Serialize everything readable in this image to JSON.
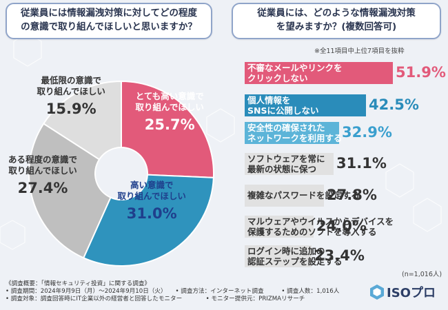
{
  "questions": {
    "left": [
      "従業員には情報漏洩対策に対してどの程度",
      "の意識で取り組んでほしいと思いますか？"
    ],
    "right": [
      "従業員には、どのような情報漏洩対策",
      "を望みますか？(複数回答可)"
    ]
  },
  "note_top": "※全11項目中上位7項目を抜粋",
  "sample_size": "(n=1,016人)",
  "chart_data": [
    {
      "type": "pie",
      "title": "従業員には情報漏洩対策に対してどの程度の意識で取り組んでほしいと思いますか？",
      "unit": "%",
      "slices": [
        {
          "label": [
            "とても高い意識で",
            "取り組んでほしい"
          ],
          "value": 25.7,
          "display": "25.7%",
          "color": "#e25a7a",
          "text_color": "#ffffff"
        },
        {
          "label": [
            "高い意識で",
            "取り組んでほしい"
          ],
          "value": 31.0,
          "display": "31.0%",
          "color": "#2f93bd",
          "text_color": "#1f3f8c"
        },
        {
          "label": [
            "ある程度の意識で",
            "取り組んでほしい"
          ],
          "value": 27.4,
          "display": "27.4%",
          "color": "#bfbfbf",
          "text_color": "#333333"
        },
        {
          "label": [
            "最低限の意識で",
            "取り組んでほしい"
          ],
          "value": 15.9,
          "display": "15.9%",
          "color": "#dedede",
          "text_color": "#333333"
        }
      ]
    },
    {
      "type": "bar",
      "orientation": "horizontal",
      "title": "従業員には、どのような情報漏洩対策を望みますか？(複数回答可)",
      "unit": "%",
      "xlim": [
        0,
        60
      ],
      "bars": [
        {
          "label": [
            "不審なメールやリンクを",
            "クリックしない"
          ],
          "value": 51.9,
          "display": "51.9%",
          "color": "#e25a7a",
          "label_color": "#ffffff",
          "value_color": "#e25a7a"
        },
        {
          "label": [
            "個人情報を",
            "SNSに公開しない"
          ],
          "value": 42.5,
          "display": "42.5%",
          "color": "#2a8cba",
          "label_color": "#ffffff",
          "value_color": "#2a8cba"
        },
        {
          "label": [
            "安全性の確保された",
            "ネットワークを利用する"
          ],
          "value": 32.9,
          "display": "32.9%",
          "color": "#5cb4d8",
          "label_color": "#ffffff",
          "value_color": "#3a9fce"
        },
        {
          "label": [
            "ソフトウェアを常に",
            "最新の状態に保つ"
          ],
          "value": 31.1,
          "display": "31.1%",
          "color": "#e1e1e1",
          "label_color": "#333333",
          "value_color": "#333333"
        },
        {
          "label": [
            "複雑なパスワードを設定する"
          ],
          "value": 27.8,
          "display": "27.8%",
          "color": "#e1e1e1",
          "label_color": "#333333",
          "value_color": "#333333"
        },
        {
          "label": [
            "マルウェアやウイルスからデバイスを",
            "保護するためのソフトを導入する"
          ],
          "value": 24.0,
          "display": "24.0%",
          "color": "#e1e1e1",
          "label_color": "#333333",
          "value_color": "#333333"
        },
        {
          "label": [
            "ログイン時に追加の",
            "認証ステップを設定する"
          ],
          "value": 23.4,
          "display": "23.4%",
          "color": "#e1e1e1",
          "label_color": "#333333",
          "value_color": "#333333"
        }
      ]
    }
  ],
  "footer": {
    "line1": "《調査概要：「情報セキュリティ投資」に関する調査》",
    "line2": "• 調査期間：2024年9月9日（月）～2024年9月10日（火）　　• 調査方法：インターネット調査　　　• 調査人数：1,016人",
    "line3": "• 調査対象：調査回答時にIT企業以外の経営者と回答したモニター　　　　• モニター提供元：PRIZMAリサーチ"
  },
  "logo": {
    "text": "ISOプロ",
    "icon": "hexagon-logo-icon",
    "color": "#2c3e66"
  }
}
